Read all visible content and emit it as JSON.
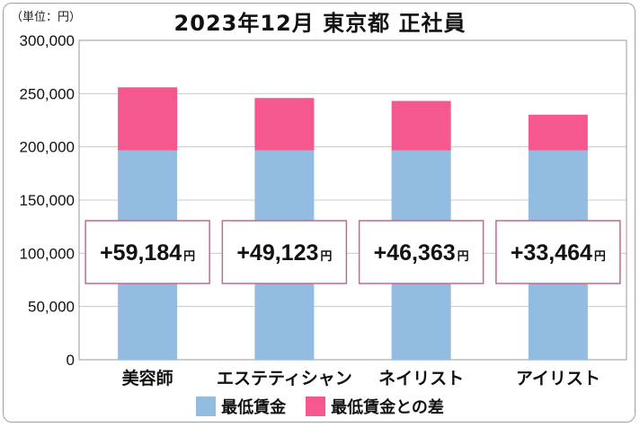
{
  "header": {
    "unit_label": "（単位：円）",
    "title": "2023年12月 東京都 正社員"
  },
  "colors": {
    "base": "#92bde1",
    "diff": "#f5588e",
    "box_border": "#c06a96",
    "grid": "#c8c8c8"
  },
  "chart_data": {
    "type": "bar",
    "stacked": true,
    "title": "2023年12月 東京都 正社員",
    "unit": "（単位：円）",
    "categories": [
      "美容師",
      "エステティシャン",
      "ネイリスト",
      "アイリスト"
    ],
    "series": [
      {
        "name": "最低賃金",
        "values": [
          196720,
          196720,
          196720,
          196720
        ]
      },
      {
        "name": "最低賃金との差",
        "values": [
          59184,
          49123,
          46363,
          33464
        ]
      }
    ],
    "diff_labels": [
      {
        "value": "+59,184",
        "unit": "円"
      },
      {
        "value": "+49,123",
        "unit": "円"
      },
      {
        "value": "+46,363",
        "unit": "円"
      },
      {
        "value": "+33,464",
        "unit": "円"
      }
    ],
    "ylim": [
      0,
      300000
    ],
    "yticks": [
      0,
      50000,
      100000,
      150000,
      200000,
      250000,
      300000
    ],
    "ytick_labels": [
      "0",
      "50,000",
      "100,000",
      "150,000",
      "200,000",
      "250,000",
      "300,000"
    ],
    "grid": true,
    "legend_position": "bottom"
  }
}
